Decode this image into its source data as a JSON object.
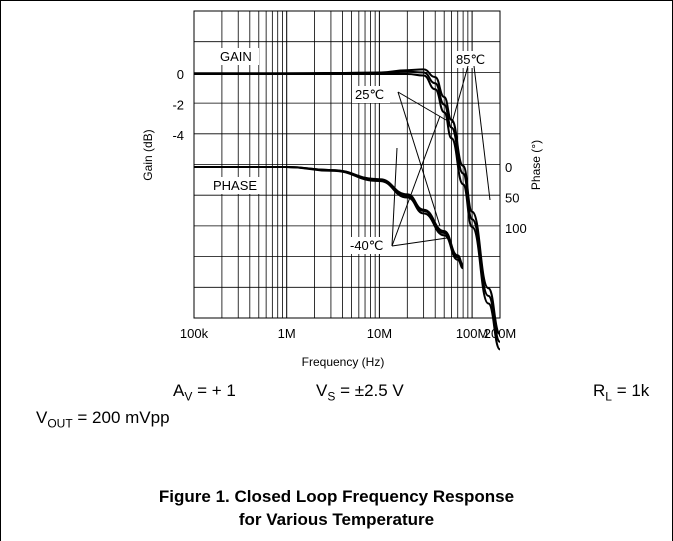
{
  "chart_data": {
    "type": "line",
    "xlabel": "Frequency (Hz)",
    "ylabel_left": "Gain (dB)",
    "ylabel_right": "Phase (°)",
    "x_scale": "log",
    "x_ticks": [
      {
        "value": 100000,
        "label": "100k"
      },
      {
        "value": 1000000,
        "label": "1M"
      },
      {
        "value": 10000000,
        "label": "10M"
      },
      {
        "value": 100000000,
        "label": "100M"
      },
      {
        "value": 200000000,
        "label": "200M"
      }
    ],
    "gain_ticks": [
      "0",
      "-2",
      "-4"
    ],
    "phase_ticks": [
      "0",
      "50",
      "100"
    ],
    "grid": true,
    "labels": {
      "gain": "GAIN",
      "phase": "PHASE",
      "t_85": "85℃",
      "t_25": "25℃",
      "t_m40": "-40℃"
    },
    "series": [
      {
        "name": "85℃",
        "kind": "gain",
        "x": [
          100000,
          1000000,
          10000000,
          20000000,
          30000000,
          40000000,
          50000000,
          60000000,
          80000000,
          100000000,
          150000000,
          200000000
        ],
        "y": [
          0,
          0,
          0.1,
          0.25,
          0.3,
          -0.2,
          -1.5,
          -3,
          -6,
          -9,
          -14,
          -17
        ]
      },
      {
        "name": "25℃",
        "kind": "gain",
        "x": [
          100000,
          1000000,
          10000000,
          20000000,
          30000000,
          40000000,
          50000000,
          60000000,
          80000000,
          100000000,
          150000000,
          200000000
        ],
        "y": [
          0,
          0,
          0.05,
          0.15,
          0.1,
          -0.6,
          -2,
          -3.5,
          -6.5,
          -9.5,
          -14.5,
          -17.5
        ]
      },
      {
        "name": "-40℃",
        "kind": "gain",
        "x": [
          100000,
          1000000,
          10000000,
          20000000,
          30000000,
          40000000,
          50000000,
          60000000,
          80000000,
          100000000,
          150000000,
          200000000
        ],
        "y": [
          0,
          0,
          0,
          0,
          -0.1,
          -1,
          -2.5,
          -4.2,
          -7.2,
          -10,
          -15,
          -18
        ]
      },
      {
        "name": "85℃",
        "kind": "phase",
        "x": [
          100000,
          1000000,
          3000000,
          10000000,
          20000000,
          30000000,
          50000000,
          70000000,
          80000000
        ],
        "y": [
          0,
          0,
          5,
          20,
          45,
          70,
          105,
          145,
          160
        ]
      },
      {
        "name": "25℃",
        "kind": "phase",
        "x": [
          100000,
          1000000,
          3000000,
          10000000,
          20000000,
          30000000,
          50000000,
          70000000,
          80000000
        ],
        "y": [
          0,
          0,
          5,
          21,
          47,
          72,
          108,
          148,
          163
        ]
      },
      {
        "name": "-40℃",
        "kind": "phase",
        "x": [
          100000,
          1000000,
          3000000,
          10000000,
          20000000,
          30000000,
          50000000,
          70000000,
          80000000
        ],
        "y": [
          0,
          0,
          6,
          23,
          50,
          76,
          112,
          152,
          166
        ]
      }
    ]
  },
  "conditions": {
    "av_var": "A",
    "av_sub": "V",
    "av_val": " = + 1",
    "vs_var": "V",
    "vs_sub": "S",
    "vs_val": " = ±2.5 V",
    "rl_var": "R",
    "rl_sub": "L",
    "rl_val": " = 1k",
    "vout_var": "V",
    "vout_sub": "OUT",
    "vout_val": " = 200 mVpp"
  },
  "caption": {
    "line1": "Figure 1. Closed Loop Frequency Response",
    "line2": "for Various Temperature"
  }
}
